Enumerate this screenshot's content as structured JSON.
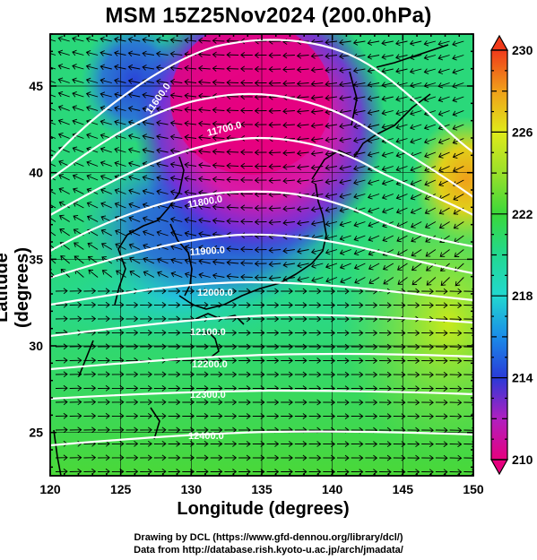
{
  "title": "MSM 15Z25Nov2024 (200.0hPa)",
  "xlabel": "Longitude (degrees)",
  "ylabel": "Latitude  (degrees)",
  "credit_line1": "Drawing by DCL (https://www.gfd-dennou.org/library/dcl/)",
  "credit_line2": "Data from http://database.rish.kyoto-u.ac.jp/arch/jmadata/",
  "colorbar": {
    "ticks": [
      "230",
      "226",
      "222",
      "218",
      "214",
      "210"
    ],
    "min": 210,
    "max": 230
  },
  "chart_data": {
    "type": "heatmap",
    "xlim": [
      120,
      150
    ],
    "ylim": [
      22.5,
      48
    ],
    "xticks": [
      "120",
      "125",
      "130",
      "135",
      "140",
      "145",
      "150"
    ],
    "yticks": [
      "25",
      "30",
      "35",
      "40",
      "45"
    ],
    "contour_labels": [
      "11600.0",
      "11700.0",
      "11800.0",
      "11900.0",
      "12000.0",
      "12100.0",
      "12200.0",
      "12300.0",
      "12400.0"
    ],
    "colors": {
      "min": "#e6007e",
      "low": "#2a3ad8",
      "mid": "#22d890",
      "high": "#d8ea1a",
      "max": "#f03a1a"
    }
  }
}
